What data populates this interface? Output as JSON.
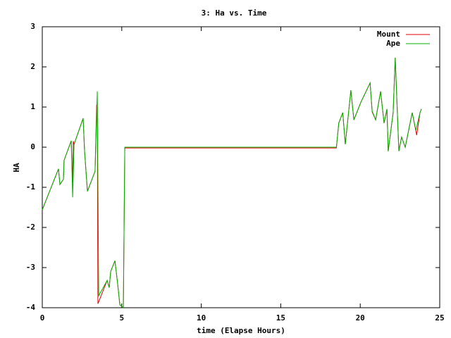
{
  "chart_data": {
    "type": "line",
    "title": "3: Ha vs. Time",
    "x_label": "time (Elapse Hours)",
    "y_label": "HA",
    "xlim": [
      0,
      25
    ],
    "xticks": [
      0,
      5,
      10,
      15,
      20,
      25
    ],
    "ylim": [
      -4,
      3
    ],
    "yticks": [
      -4,
      -3,
      -2,
      -1,
      0,
      1,
      2,
      3
    ],
    "legend": "upper right",
    "series": [
      {
        "name": "Mount",
        "color": "#e00000",
        "x": [
          0,
          1.02,
          1.11,
          1.33,
          1.37,
          1.82,
          1.91,
          1.95,
          2.0,
          2.57,
          2.66,
          2.84,
          3.32,
          3.42,
          3.46,
          3.5,
          4.08,
          4.21,
          4.3,
          4.57,
          4.74,
          4.88,
          5.1,
          5.19,
          18.5,
          18.65,
          18.9,
          19.06,
          19.41,
          19.6,
          20.04,
          20.62,
          20.75,
          20.97,
          21.28,
          21.5,
          21.68,
          21.76,
          22.07,
          22.2,
          22.43,
          22.6,
          22.83,
          23.27,
          23.45,
          23.55,
          23.76,
          23.85
        ],
        "values": [
          -1.56,
          -0.54,
          -0.93,
          -0.8,
          -0.33,
          0.16,
          -0.88,
          0.15,
          0.07,
          0.72,
          -0.1,
          -1.1,
          -0.6,
          1.05,
          1.05,
          -3.9,
          -3.32,
          -3.5,
          -3.1,
          -2.83,
          -3.4,
          -3.93,
          -4.0,
          -0.02,
          -0.02,
          0.6,
          0.86,
          0.07,
          1.42,
          0.68,
          1.12,
          1.6,
          0.88,
          0.68,
          1.39,
          0.6,
          0.95,
          -0.1,
          0.86,
          2.23,
          -0.1,
          0.25,
          0,
          0.86,
          0.5,
          0.3,
          0.86,
          0.95
        ]
      },
      {
        "name": "Ape",
        "color": "#00b000",
        "x": [
          0,
          1.02,
          1.11,
          1.33,
          1.37,
          1.82,
          1.91,
          2.0,
          2.57,
          2.66,
          2.84,
          3.32,
          3.46,
          3.55,
          4.08,
          4.21,
          4.3,
          4.57,
          4.74,
          4.88,
          5.1,
          5.19,
          18.5,
          18.65,
          18.9,
          19.06,
          19.41,
          19.6,
          20.04,
          20.62,
          20.75,
          20.97,
          21.28,
          21.5,
          21.68,
          21.76,
          22.07,
          22.2,
          22.43,
          22.6,
          22.83,
          23.27,
          23.5,
          23.76,
          23.85
        ],
        "values": [
          -1.56,
          -0.54,
          -0.93,
          -0.8,
          -0.33,
          0.16,
          -1.25,
          0.07,
          0.72,
          -0.1,
          -1.1,
          -0.6,
          1.39,
          -3.7,
          -3.32,
          -3.5,
          -3.1,
          -2.83,
          -3.4,
          -3.93,
          -4.0,
          0,
          0,
          0.6,
          0.86,
          0.07,
          1.42,
          0.68,
          1.12,
          1.6,
          0.9,
          0.68,
          1.39,
          0.6,
          0.95,
          -0.1,
          0.86,
          2.23,
          -0.1,
          0.25,
          0,
          0.86,
          0.42,
          0.86,
          0.95
        ]
      }
    ]
  }
}
